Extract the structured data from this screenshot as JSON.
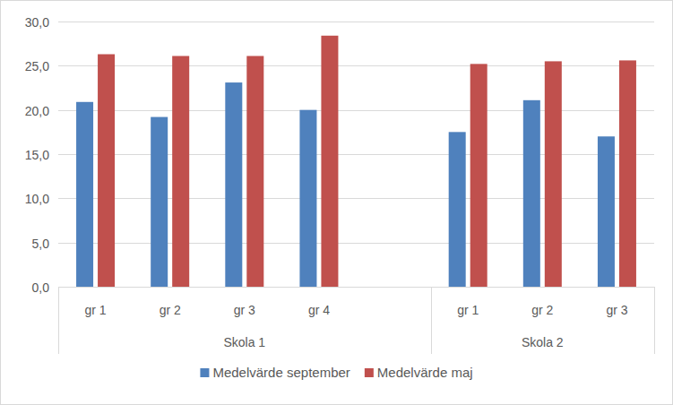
{
  "chart_data": {
    "type": "bar",
    "categories": [
      "gr 1",
      "gr 2",
      "gr 3",
      "gr 4",
      null,
      "gr 1",
      "gr 2",
      "gr 3"
    ],
    "category_groups": [
      {
        "label": "Skola 1",
        "count": 5
      },
      {
        "label": "Skola 2",
        "count": 3
      }
    ],
    "series": [
      {
        "name": "Medelvärde september",
        "color": "#4f81bd",
        "values": [
          20.9,
          19.2,
          23.1,
          20.0,
          null,
          17.5,
          21.1,
          17.0
        ]
      },
      {
        "name": "Medelvärde maj",
        "color": "#c0504d",
        "values": [
          26.3,
          26.1,
          26.1,
          28.4,
          null,
          25.2,
          25.5,
          25.6
        ]
      }
    ],
    "ylim": [
      0,
      30
    ],
    "yticks": [
      {
        "value": 0,
        "label": "0,0"
      },
      {
        "value": 5,
        "label": "5,0"
      },
      {
        "value": 10,
        "label": "10,0"
      },
      {
        "value": 15,
        "label": "15,0"
      },
      {
        "value": 20,
        "label": "20,0"
      },
      {
        "value": 25,
        "label": "25,0"
      },
      {
        "value": 30,
        "label": "30,0"
      }
    ],
    "grid": true,
    "legend": "bottom"
  }
}
